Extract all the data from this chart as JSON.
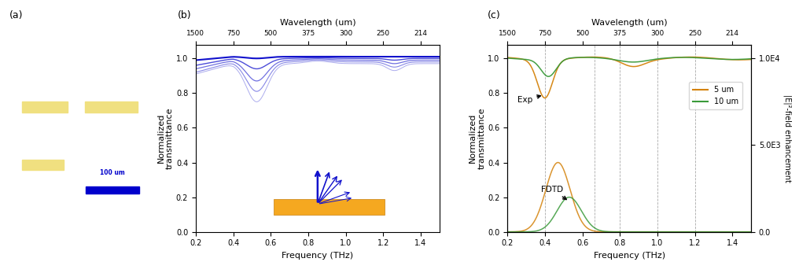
{
  "panel_b": {
    "title_top": "Wavelength (um)",
    "xlabel": "Frequency (THz)",
    "ylabel": "Normalized\ntransmittance",
    "xlim": [
      0.2,
      1.5
    ],
    "ylim": [
      0.0,
      1.08
    ],
    "xticks": [
      0.2,
      0.4,
      0.6,
      0.8,
      1.0,
      1.2,
      1.4
    ],
    "yticks": [
      0.0,
      0.2,
      0.4,
      0.6,
      0.8,
      1.0
    ],
    "top_ticks": [
      0.2,
      0.4,
      0.6,
      0.8,
      1.0,
      1.2,
      1.4
    ],
    "top_tick_labels": [
      "1500",
      "750",
      "500",
      "375",
      "300",
      "250",
      "214"
    ],
    "curve_color": "#1111CC"
  },
  "panel_c": {
    "title_top": "Wavelength (um)",
    "xlabel": "Frequency (THz)",
    "ylabel": "Normalized\ntransmittance",
    "ylabel_right": "|E|²-field enhancement",
    "xlim": [
      0.2,
      1.5
    ],
    "ylim_left": [
      0.0,
      1.08
    ],
    "yticks_left": [
      0.0,
      0.2,
      0.4,
      0.6,
      0.8,
      1.0
    ],
    "ytick_labels_right": [
      "0.0",
      "5.0E3",
      "1.0E4"
    ],
    "top_tick_labels": [
      "1500",
      "750",
      "500",
      "375",
      "300",
      "250",
      "214"
    ],
    "top_ticks": [
      0.2,
      0.4,
      0.6,
      0.8,
      1.0,
      1.2,
      1.4
    ],
    "color_5um": "#D4820A",
    "color_10um": "#3A9A3A",
    "vline_positions": [
      0.4,
      0.667,
      0.8,
      1.0,
      1.2
    ],
    "annotation_exp": "Exp",
    "annotation_fdtd": "FDTD"
  },
  "panel_a": {
    "bg_color": "#B8BEC4",
    "ant_color": "#F0E080",
    "bar_color": "#0000CC",
    "label_color": "#0000CC"
  }
}
